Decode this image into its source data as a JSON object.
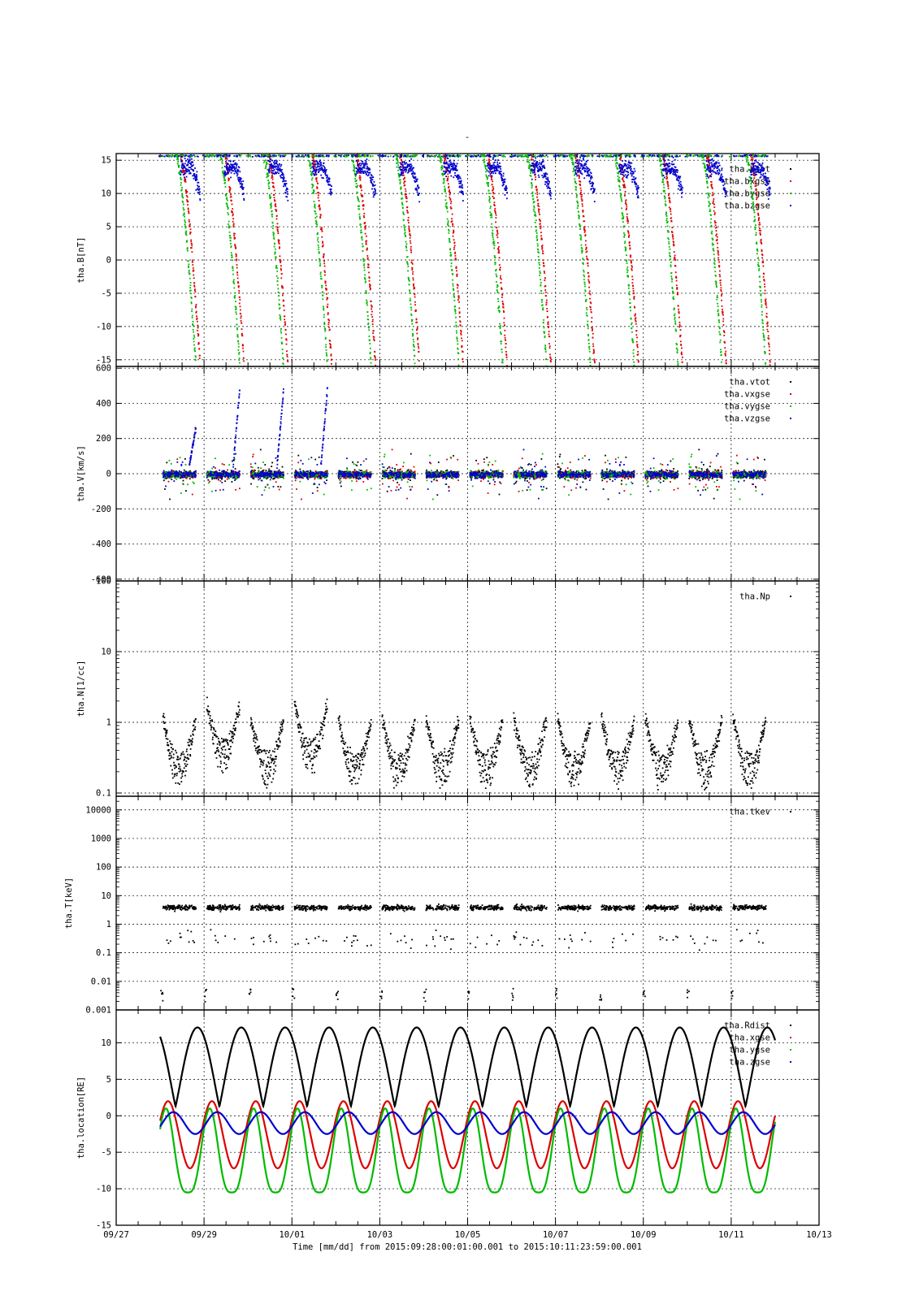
{
  "figure": {
    "title": "-",
    "xlabel": "Time [mm/dd]  from 2015:09:28:00:01:00.001  to  2015:10:11:23:59:00.001",
    "x_ticks": [
      "09/27",
      "09/29",
      "10/01",
      "10/03",
      "10/05",
      "10/07",
      "10/09",
      "10/11",
      "10/13"
    ],
    "x_range_days": [
      0,
      16
    ],
    "x_start_label": "09/27"
  },
  "chart_data": [
    {
      "type": "scatter",
      "ylabel": "tha.B[nT]",
      "ylim": [
        -16,
        16
      ],
      "yscale": "linear",
      "y_ticks": [
        {
          "v": 15,
          "label": "15"
        },
        {
          "v": 10,
          "label": "10"
        },
        {
          "v": 5,
          "label": "5"
        },
        {
          "v": 0,
          "label": "0"
        },
        {
          "v": -5,
          "label": "-5"
        },
        {
          "v": -10,
          "label": "-10"
        },
        {
          "v": -15,
          "label": "-15"
        }
      ],
      "legend": "top-right",
      "series": [
        {
          "name": "tha.btot",
          "color": "#000000"
        },
        {
          "name": "tha.bxgse",
          "color": "#dd0000"
        },
        {
          "name": "tha.bygse",
          "color": "#00bb00"
        },
        {
          "name": "tha.bzgse",
          "color": "#0000cc"
        }
      ]
    },
    {
      "type": "scatter",
      "ylabel": "tha.V[km/s]",
      "ylim": [
        -610,
        610
      ],
      "yscale": "linear",
      "y_ticks": [
        {
          "v": 600,
          "label": "600"
        },
        {
          "v": 400,
          "label": "400"
        },
        {
          "v": 200,
          "label": "200"
        },
        {
          "v": 0,
          "label": "0"
        },
        {
          "v": -200,
          "label": "-200"
        },
        {
          "v": -400,
          "label": "-400"
        },
        {
          "v": -600,
          "label": "-600"
        }
      ],
      "legend": "top-right",
      "series": [
        {
          "name": "tha.vtot",
          "color": "#000000"
        },
        {
          "name": "tha.vxgse",
          "color": "#dd0000"
        },
        {
          "name": "tha.vygse",
          "color": "#00bb00"
        },
        {
          "name": "tha.vzgse",
          "color": "#0000cc"
        }
      ]
    },
    {
      "type": "scatter",
      "ylabel": "tha.N[1/cc]",
      "ylim": [
        0.09,
        100
      ],
      "yscale": "log",
      "y_ticks": [
        {
          "v": 100,
          "label": "100"
        },
        {
          "v": 10,
          "label": "10"
        },
        {
          "v": 1,
          "label": "1"
        },
        {
          "v": 0.1,
          "label": "0.1"
        }
      ],
      "legend": "top-right",
      "series": [
        {
          "name": "tha.Np",
          "color": "#000000"
        }
      ]
    },
    {
      "type": "scatter",
      "ylabel": "tha.T[keV]",
      "ylim": [
        0.001,
        30000
      ],
      "yscale": "log",
      "y_ticks": [
        {
          "v": 10000,
          "label": "10000"
        },
        {
          "v": 1000,
          "label": "1000"
        },
        {
          "v": 100,
          "label": "100"
        },
        {
          "v": 10,
          "label": "10"
        },
        {
          "v": 1,
          "label": "1"
        },
        {
          "v": 0.1,
          "label": "0.1"
        },
        {
          "v": 0.01,
          "label": "0.01"
        },
        {
          "v": 0.001,
          "label": "0.001"
        }
      ],
      "legend": "top-right",
      "series": [
        {
          "name": "tha.tkev",
          "color": "#000000"
        }
      ]
    },
    {
      "type": "line",
      "ylabel": "tha.location[RE]",
      "ylim": [
        -15,
        14.5
      ],
      "yscale": "linear",
      "y_ticks": [
        {
          "v": 10,
          "label": "10"
        },
        {
          "v": 5,
          "label": "5"
        },
        {
          "v": 0,
          "label": "0"
        },
        {
          "v": -5,
          "label": "-5"
        },
        {
          "v": -10,
          "label": "-10"
        },
        {
          "v": -15,
          "label": "-15"
        }
      ],
      "legend": "top-right",
      "orbit": {
        "period_days": 0.998,
        "apogee_times": [
          1.85,
          2.85,
          3.85,
          4.85,
          5.85,
          6.85,
          7.85,
          8.85,
          9.85,
          10.85,
          11.85,
          12.85,
          13.85
        ]
      },
      "series": [
        {
          "name": "tha.Rdist",
          "color": "#000000",
          "range": [
            1.3,
            12.1
          ]
        },
        {
          "name": "tha.xgse",
          "color": "#dd0000",
          "range": [
            -7.2,
            2.0
          ]
        },
        {
          "name": "tha.ygse",
          "color": "#00bb00",
          "range": [
            -10.5,
            1.0
          ]
        },
        {
          "name": "tha.zgse",
          "color": "#0000cc",
          "range": [
            -2.5,
            0.5
          ]
        }
      ]
    }
  ]
}
